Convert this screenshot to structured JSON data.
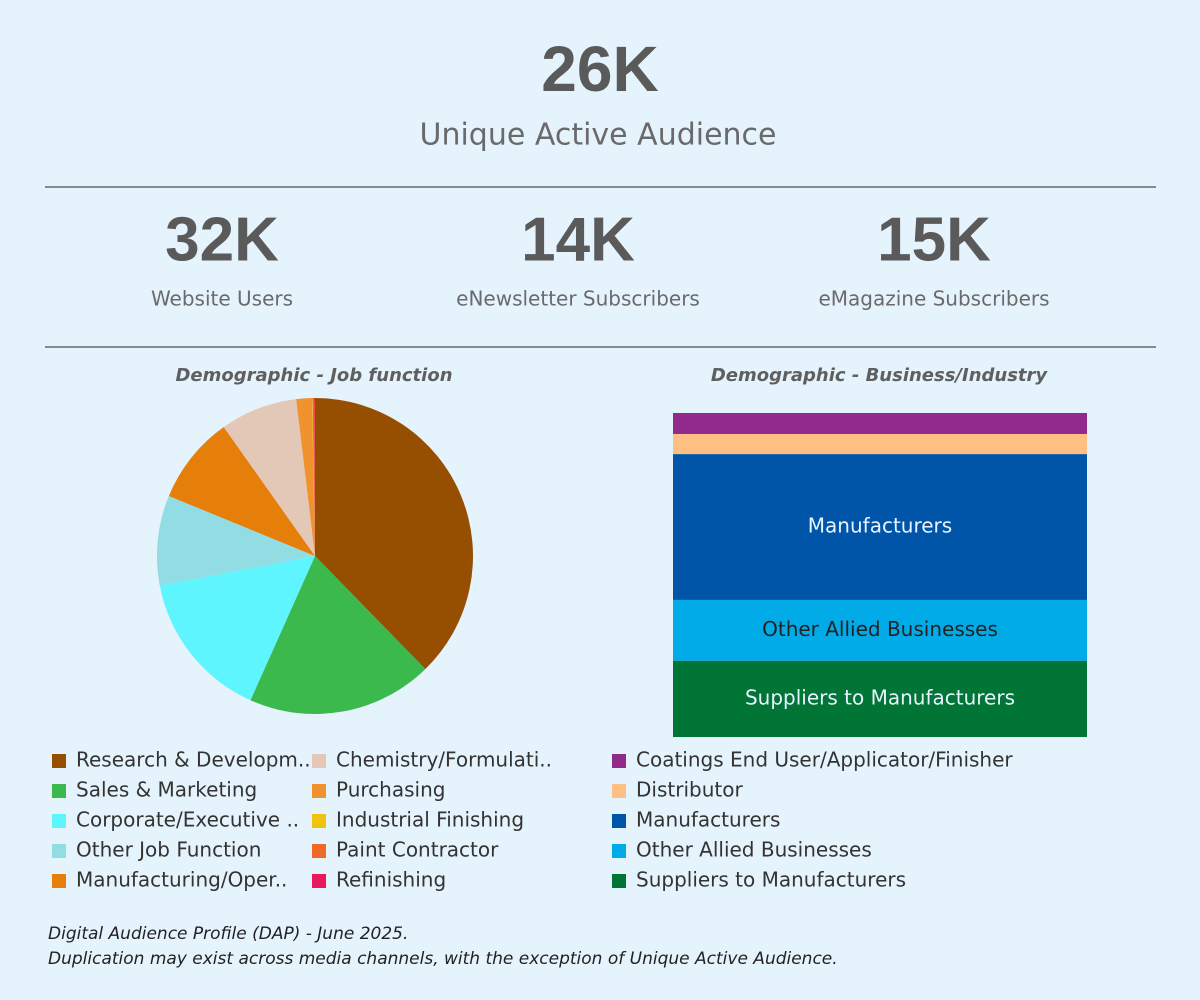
{
  "headline": {
    "value": "26K",
    "label": "Unique Active Audience"
  },
  "kpis": [
    {
      "value": "32K",
      "label": "Website Users"
    },
    {
      "value": "14K",
      "label": "eNewsletter Subscribers"
    },
    {
      "value": "15K",
      "label": "eMagazine Subscribers"
    }
  ],
  "chart_data": [
    {
      "type": "pie",
      "title": "Demographic - Job function",
      "categories": [
        "Research & Developm..",
        "Sales & Marketing",
        "Corporate/Executive ..",
        "Other Job Function",
        "Manufacturing/Oper..",
        "Chemistry/Formulati..",
        "Purchasing",
        "Industrial Finishing",
        "Paint Contractor",
        "Refinishing"
      ],
      "values": [
        37.7,
        19,
        15.3,
        9.2,
        9,
        7.9,
        1.6,
        0.05,
        0.2,
        0.05
      ],
      "colors": [
        "#964f00",
        "#3cb94d",
        "#5ef5ff",
        "#91dde3",
        "#e67e0a",
        "#e3c8b7",
        "#f0922e",
        "#f0c30f",
        "#f0682a",
        "#e8195e"
      ]
    },
    {
      "type": "stacked-bar",
      "title": "Demographic - Business/Industry",
      "series": [
        {
          "name": "Coatings End User/Applicator/Finisher",
          "color": "#922a8c",
          "values": [
            6.5
          ]
        },
        {
          "name": "Distributor",
          "color": "#ffbe82",
          "values": [
            6.2
          ]
        },
        {
          "name": "Manufacturers",
          "color": "#0055a8",
          "values": [
            45.0
          ]
        },
        {
          "name": "Other Allied Businesses",
          "color": "#00abe7",
          "values": [
            18.8
          ]
        },
        {
          "name": "Suppliers to Manufacturers",
          "color": "#007535",
          "values": [
            23.5
          ]
        }
      ]
    }
  ],
  "footnotes": [
    "Digital Audience Profile (DAP) - June 2025.",
    "Duplication may exist across media channels, with the exception of Unique Active Audience."
  ]
}
